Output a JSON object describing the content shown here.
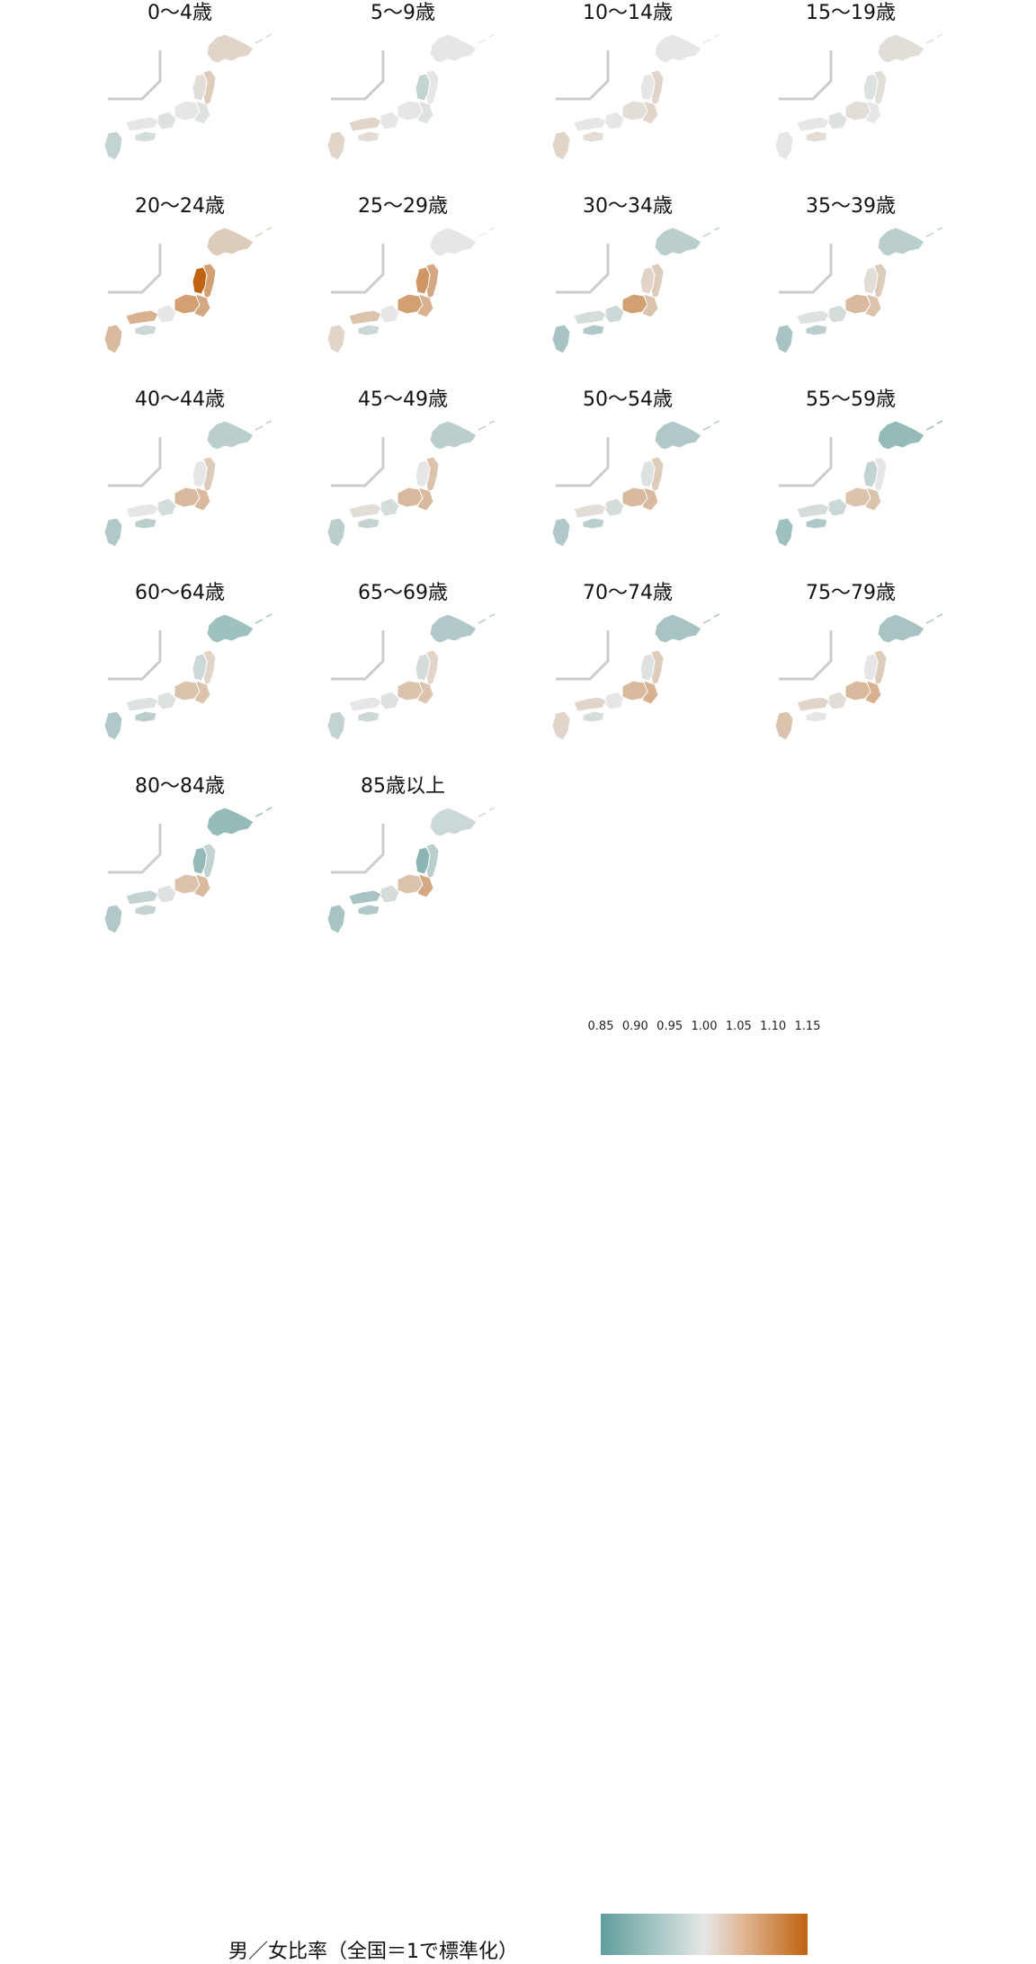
{
  "chart_data": {
    "type": "choropleth-map",
    "panels": [
      {
        "title": "0〜4歳",
        "hokkaido": 1.02,
        "tohoku": 1.03,
        "kanto": 0.99,
        "chubu": 1.0,
        "kansai": 0.99,
        "chugoku": 1.0,
        "shikoku": 0.98,
        "kyushu": 0.96,
        "niigata": 1.01
      },
      {
        "title": "5〜9歳",
        "hokkaido": 1.0,
        "tohoku": 1.0,
        "kanto": 0.99,
        "chubu": 1.0,
        "kansai": 1.0,
        "chugoku": 1.02,
        "shikoku": 1.01,
        "kyushu": 1.02,
        "niigata": 0.96
      },
      {
        "title": "10〜14歳",
        "hokkaido": 1.0,
        "tohoku": 1.02,
        "kanto": 1.02,
        "chubu": 1.01,
        "kansai": 1.0,
        "chugoku": 1.0,
        "shikoku": 1.01,
        "kyushu": 1.02,
        "niigata": 1.0
      },
      {
        "title": "15〜19歳",
        "hokkaido": 1.01,
        "tohoku": 1.01,
        "kanto": 1.0,
        "chubu": 1.01,
        "kansai": 0.99,
        "chugoku": 1.0,
        "shikoku": 1.01,
        "kyushu": 1.0,
        "niigata": 0.99
      },
      {
        "title": "20〜24歳",
        "hokkaido": 1.03,
        "tohoku": 1.08,
        "kanto": 1.07,
        "chubu": 1.08,
        "kansai": 1.0,
        "chugoku": 1.06,
        "shikoku": 0.97,
        "kyushu": 1.05,
        "niigata": 1.15
      },
      {
        "title": "25〜29歳",
        "hokkaido": 1.0,
        "tohoku": 1.07,
        "kanto": 1.06,
        "chubu": 1.08,
        "kansai": 1.0,
        "chugoku": 1.04,
        "shikoku": 0.97,
        "kyushu": 1.02,
        "niigata": 1.09
      },
      {
        "title": "30〜34歳",
        "hokkaido": 0.95,
        "tohoku": 1.03,
        "kanto": 1.04,
        "chubu": 1.08,
        "kansai": 0.97,
        "chugoku": 0.98,
        "shikoku": 0.94,
        "kyushu": 0.93,
        "niigata": 1.02
      },
      {
        "title": "35〜39歳",
        "hokkaido": 0.95,
        "tohoku": 1.03,
        "kanto": 1.04,
        "chubu": 1.05,
        "kansai": 0.98,
        "chugoku": 0.99,
        "shikoku": 0.95,
        "kyushu": 0.93,
        "niigata": 1.01
      },
      {
        "title": "40〜44歳",
        "hokkaido": 0.95,
        "tohoku": 1.03,
        "kanto": 1.05,
        "chubu": 1.05,
        "kansai": 0.98,
        "chugoku": 1.0,
        "shikoku": 0.95,
        "kyushu": 0.94,
        "niigata": 1.0
      },
      {
        "title": "45〜49歳",
        "hokkaido": 0.95,
        "tohoku": 1.04,
        "kanto": 1.05,
        "chubu": 1.05,
        "kansai": 0.98,
        "chugoku": 1.01,
        "shikoku": 0.96,
        "kyushu": 0.95,
        "niigata": 1.0
      },
      {
        "title": "50〜54歳",
        "hokkaido": 0.94,
        "tohoku": 1.03,
        "kanto": 1.05,
        "chubu": 1.05,
        "kansai": 0.98,
        "chugoku": 1.01,
        "shikoku": 0.95,
        "kyushu": 0.94,
        "niigata": 0.99
      },
      {
        "title": "55〜59歳",
        "hokkaido": 0.91,
        "tohoku": 1.0,
        "kanto": 1.04,
        "chubu": 1.04,
        "kansai": 0.97,
        "chugoku": 0.98,
        "shikoku": 0.94,
        "kyushu": 0.92,
        "niigata": 0.96
      },
      {
        "title": "60〜64歳",
        "hokkaido": 0.92,
        "tohoku": 1.02,
        "kanto": 1.04,
        "chubu": 1.04,
        "kansai": 0.99,
        "chugoku": 0.99,
        "shikoku": 0.95,
        "kyushu": 0.94,
        "niigata": 0.97
      },
      {
        "title": "65〜69歳",
        "hokkaido": 0.94,
        "tohoku": 1.02,
        "kanto": 1.04,
        "chubu": 1.04,
        "kansai": 0.99,
        "chugoku": 1.0,
        "shikoku": 0.97,
        "kyushu": 0.96,
        "niigata": 0.98
      },
      {
        "title": "70〜74歳",
        "hokkaido": 0.93,
        "tohoku": 1.03,
        "kanto": 1.06,
        "chubu": 1.05,
        "kansai": 1.0,
        "chugoku": 1.02,
        "shikoku": 0.98,
        "kyushu": 1.02,
        "niigata": 0.99
      },
      {
        "title": "75〜79歳",
        "hokkaido": 0.93,
        "tohoku": 1.03,
        "kanto": 1.06,
        "chubu": 1.05,
        "kansai": 1.01,
        "chugoku": 1.02,
        "shikoku": 1.0,
        "kyushu": 1.04,
        "niigata": 1.0
      },
      {
        "title": "80〜84歳",
        "hokkaido": 0.91,
        "tohoku": 0.96,
        "kanto": 1.05,
        "chubu": 1.04,
        "kansai": 0.99,
        "chugoku": 0.96,
        "shikoku": 0.96,
        "kyushu": 0.94,
        "niigata": 0.91
      },
      {
        "title": "85歳以上",
        "hokkaido": 0.97,
        "tohoku": 0.95,
        "kanto": 1.07,
        "chubu": 1.04,
        "kansai": 0.98,
        "chugoku": 0.93,
        "shikoku": 0.94,
        "kyushu": 0.93,
        "niigata": 0.9
      }
    ],
    "legend": {
      "title": "男／女比率（全国＝1で標準化）",
      "ticks": [
        "0.85",
        "0.90",
        "0.95",
        "1.00",
        "1.05",
        "1.10",
        "1.15"
      ],
      "range": [
        0.85,
        1.15
      ],
      "low_color": "#5f9e9b",
      "mid_color": "#e6e6e6",
      "high_color": "#c0620f"
    }
  }
}
